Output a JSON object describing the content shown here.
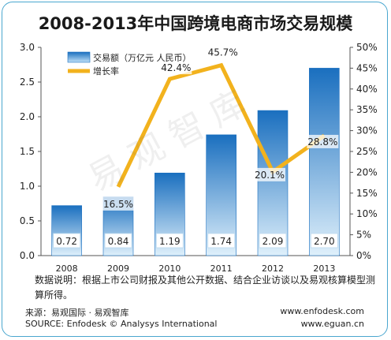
{
  "title": "2008-2013年中国跨境电商市场交易规模",
  "chart_data": {
    "type": "bar",
    "categories": [
      "2008",
      "2009",
      "2010",
      "2011",
      "2012",
      "2013"
    ],
    "series": [
      {
        "name": "交易额（万亿元 人民币）",
        "type": "bar",
        "axis": "left",
        "values": [
          0.72,
          0.84,
          1.19,
          1.74,
          2.09,
          2.7
        ],
        "labels": [
          "0.72",
          "0.84",
          "1.19",
          "1.74",
          "2.09",
          "2.70"
        ],
        "color": "#1f7cc8"
      },
      {
        "name": "增长率",
        "type": "line",
        "axis": "right",
        "values": [
          null,
          16.5,
          42.4,
          45.7,
          20.1,
          28.8
        ],
        "labels": [
          "",
          "16.5%",
          "42.4%",
          "45.7%",
          "20.1%",
          "28.8%"
        ],
        "color": "#f2b21d"
      }
    ],
    "y_left": {
      "min": 0,
      "max": 3.0,
      "ticks": [
        "0.0",
        "0.5",
        "1.0",
        "1.5",
        "2.0",
        "2.5",
        "3.0"
      ],
      "tick_values": [
        0,
        0.5,
        1.0,
        1.5,
        2.0,
        2.5,
        3.0
      ]
    },
    "y_right": {
      "min": 0,
      "max": 50,
      "ticks": [
        "0%",
        "5%",
        "10%",
        "15%",
        "20%",
        "25%",
        "30%",
        "35%",
        "40%",
        "45%",
        "50%"
      ],
      "tick_values": [
        0,
        5,
        10,
        15,
        20,
        25,
        30,
        35,
        40,
        45,
        50
      ]
    },
    "grid": false,
    "legend": "top-left"
  },
  "note": "数据说明：根据上市公司财报及其他公开数据、结合企业访谈以及易观核算模型测算所得。",
  "source_cn": "来源：易观国际 · 易观智库",
  "source_en": "SOURCE: Enfodesk © Analysys International",
  "url_1": "www.enfodesk.com",
  "url_2": "www.eguan.cn",
  "watermark": "易观智库",
  "colors": {
    "bar": "#1f7cc8",
    "line": "#f2b21d",
    "frame": "#4aa7cf"
  }
}
